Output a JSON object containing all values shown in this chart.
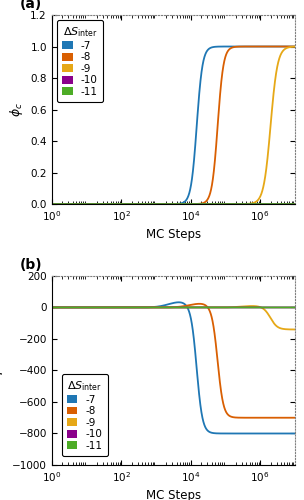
{
  "title_a": "(a)",
  "title_b": "(b)",
  "xlabel": "MC Steps",
  "ylabel_a": "$\\phi_c$",
  "ylabel_b": "$F$",
  "xlim": [
    1,
    10000000.0
  ],
  "ylim_a": [
    0,
    1.2
  ],
  "ylim_b": [
    -1000,
    200
  ],
  "yticks_a": [
    0.0,
    0.2,
    0.4,
    0.6,
    0.8,
    1.0,
    1.2
  ],
  "yticks_b": [
    -1000,
    -800,
    -600,
    -400,
    -200,
    0,
    200
  ],
  "legend_labels": [
    "-7",
    "-8",
    "-9",
    "-10",
    "-11"
  ],
  "legend_title": "$\\Delta S_{\\mathrm{inter}}$",
  "colors": [
    "#1f77b4",
    "#d95f02",
    "#e6a817",
    "#8b008b",
    "#4dac26"
  ],
  "series_params_phi": [
    [
      15000,
      12
    ],
    [
      60000,
      12
    ],
    [
      2000000,
      10
    ],
    [
      500000000.0,
      8
    ],
    [
      5000000000.0,
      8
    ]
  ],
  "series_params_F": [
    [
      15000,
      12,
      -800,
      35
    ],
    [
      60000,
      12,
      -700,
      25
    ],
    [
      2000000,
      10,
      -140,
      10
    ],
    [
      500000000.0,
      8,
      -118,
      3
    ],
    [
      5000000000.0,
      8,
      -118,
      2
    ]
  ],
  "background_color": "#ffffff"
}
